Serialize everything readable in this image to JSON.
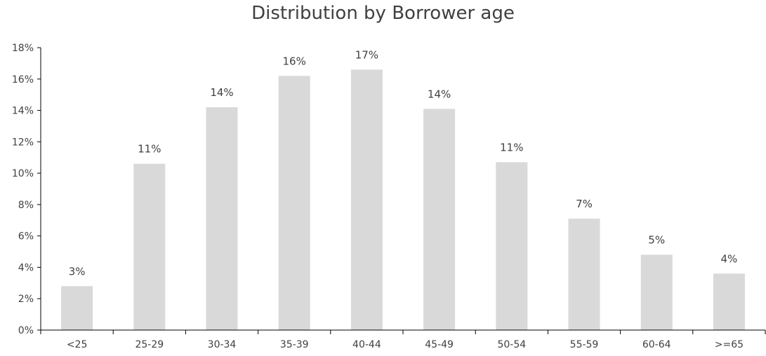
{
  "chart_data": {
    "type": "bar",
    "title": "Distribution by Borrower age",
    "xlabel": "",
    "ylabel": "",
    "categories": [
      "<25",
      "25-29",
      "30-34",
      "35-39",
      "40-44",
      "45-49",
      "50-54",
      "55-59",
      "60-64",
      ">=65"
    ],
    "values": [
      2.8,
      10.6,
      14.2,
      16.2,
      16.6,
      14.1,
      10.7,
      7.1,
      4.8,
      3.6
    ],
    "data_labels": [
      "3%",
      "11%",
      "14%",
      "16%",
      "17%",
      "14%",
      "11%",
      "7%",
      "5%",
      "4%"
    ],
    "ylim": [
      0,
      18
    ],
    "yticks": [
      0,
      2,
      4,
      6,
      8,
      10,
      12,
      14,
      16,
      18
    ],
    "ytick_labels": [
      "0%",
      "2%",
      "4%",
      "6%",
      "8%",
      "10%",
      "12%",
      "14%",
      "16%",
      "18%"
    ],
    "grid": false,
    "legend": "none",
    "colors": {
      "bar": "#d9d9d9",
      "axis": "#000000",
      "text": "#404040"
    }
  }
}
